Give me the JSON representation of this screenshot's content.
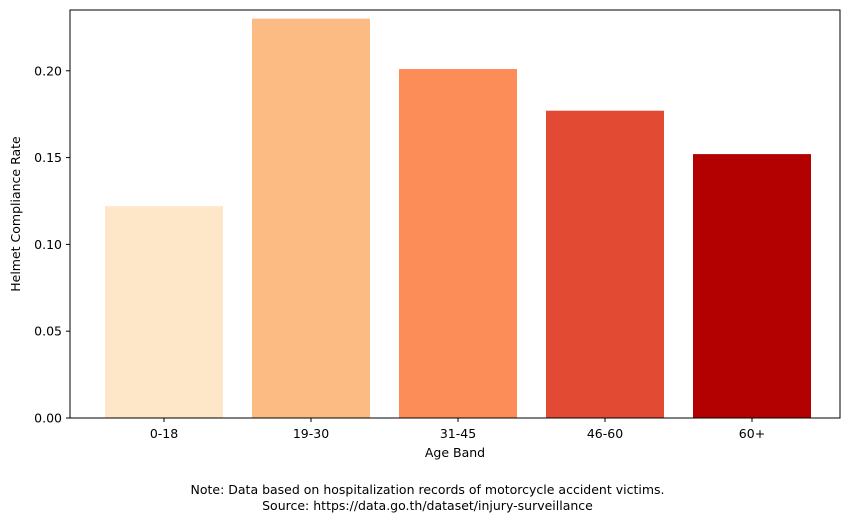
{
  "chart_data": {
    "type": "bar",
    "title": "",
    "xlabel": "Age Band",
    "ylabel": "Helmet Compliance Rate",
    "categories": [
      "0-18",
      "19-30",
      "31-45",
      "46-60",
      "60+"
    ],
    "values": [
      0.122,
      0.23,
      0.201,
      0.177,
      0.152
    ],
    "colors": [
      "#fee6c8",
      "#fdbb84",
      "#fc8d59",
      "#e34a33",
      "#b30000"
    ],
    "ylim": [
      0,
      0.235
    ],
    "yticks": [
      0.0,
      0.05,
      0.1,
      0.15,
      0.2
    ],
    "ytick_labels": [
      "0.00",
      "0.05",
      "0.10",
      "0.15",
      "0.20"
    ],
    "grid": false,
    "legend": "none"
  },
  "note": {
    "line1": "Note: Data based on hospitalization records of motorcycle accident victims.",
    "line2": "Source: https://data.go.th/dataset/injury-surveillance"
  }
}
